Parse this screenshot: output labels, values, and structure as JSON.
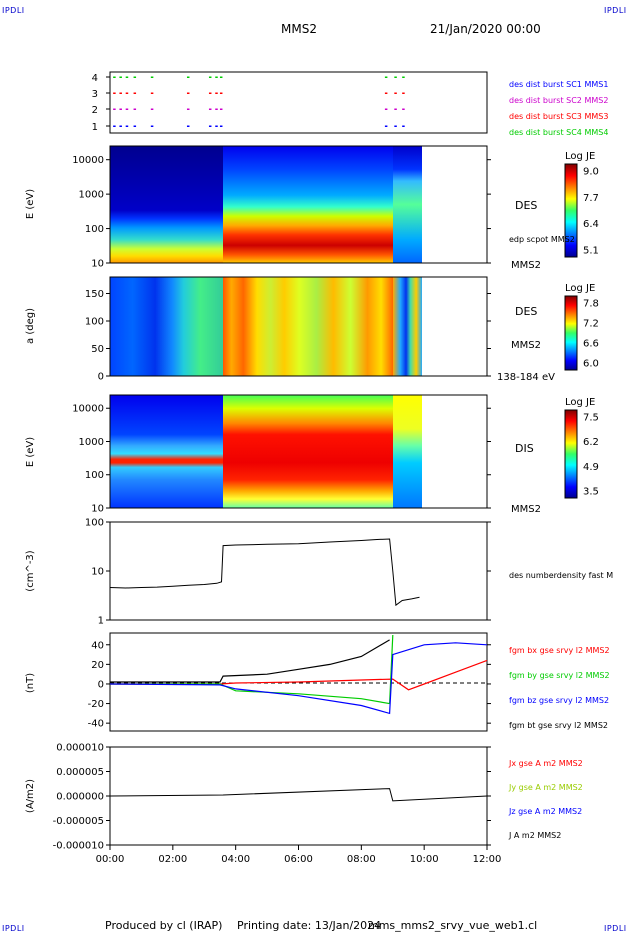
{
  "header": {
    "corner_tl": "IPDLI",
    "corner_tr": "IPDLI",
    "corner_bl": "IPDLI",
    "corner_br": "IPDLI",
    "spacecraft": "MMS2",
    "date": "21/Jan/2020 00:00"
  },
  "footer": {
    "produced": "Produced by cl (IRAP)",
    "printing": "Printing date: 13/Jan/2024",
    "file": "mms_mms2_srvy_vue_web1.cl"
  },
  "colors": {
    "c1": "#0000ff",
    "c2": "#cc00cc",
    "c3": "#ff0000",
    "c4": "#00cc00",
    "black": "#000000"
  },
  "chart_data": [
    {
      "type": "scatter",
      "panel": "burst availability",
      "yticks": [
        "4",
        "3",
        "2",
        "1"
      ],
      "series": [
        {
          "name": "des dist burst SC1 MMS1",
          "color": "#0000ff"
        },
        {
          "name": "des dist burst SC2 MMS2",
          "color": "#cc00cc"
        },
        {
          "name": "des dist burst SC3 MMS3",
          "color": "#ff0000"
        },
        {
          "name": "des dist burst SC4 MMS4",
          "color": "#00cc00"
        }
      ],
      "burst_times_h": [
        0.1,
        0.3,
        0.5,
        0.75,
        1.3,
        2.45,
        3.15,
        3.35,
        3.5,
        8.75,
        9.05,
        9.3
      ]
    },
    {
      "type": "heatmap",
      "panel": "DES electron energy spectrogram",
      "ylabel": "E (eV)",
      "yticks": [
        "10000",
        "1000",
        "100",
        "10"
      ],
      "ylog": [
        10,
        25000
      ],
      "label": "DES",
      "overlay": "edp scpot MMS2",
      "sc": "MMS2",
      "colorbar": {
        "title": "Log JE",
        "ticks": [
          "9.0",
          "7.7",
          "6.4",
          "5.1"
        ],
        "min": 5.1,
        "max": 9.0
      }
    },
    {
      "type": "heatmap",
      "panel": "DES pitch angle",
      "ylabel": "a (deg)",
      "yticks": [
        "150",
        "100",
        "50",
        "0"
      ],
      "ylim": [
        0,
        180
      ],
      "label": "DES",
      "sc": "MMS2",
      "energy": "138-184 eV",
      "colorbar": {
        "title": "Log JE",
        "ticks": [
          "7.8",
          "7.2",
          "6.6",
          "6.0"
        ],
        "min": 6.0,
        "max": 7.8
      }
    },
    {
      "type": "heatmap",
      "panel": "DIS ion energy spectrogram",
      "ylabel": "E (eV)",
      "yticks": [
        "10000",
        "1000",
        "100",
        "10"
      ],
      "ylog": [
        10,
        25000
      ],
      "label": "DIS",
      "sc": "MMS2",
      "colorbar": {
        "title": "Log JE",
        "ticks": [
          "7.5",
          "6.2",
          "4.9",
          "3.5"
        ],
        "min": 3.5,
        "max": 7.5
      }
    },
    {
      "type": "line",
      "panel": "electron density",
      "ylabel": "(cm^-3)",
      "yticks": [
        "100",
        "10",
        "1"
      ],
      "ylog": [
        1,
        100
      ],
      "series": [
        {
          "name": "des numberdensity fast M",
          "color": "#000000"
        }
      ],
      "points_h": [
        [
          0.0,
          4.6
        ],
        [
          0.5,
          4.5
        ],
        [
          1.0,
          4.6
        ],
        [
          1.5,
          4.7
        ],
        [
          2.0,
          4.9
        ],
        [
          2.5,
          5.1
        ],
        [
          3.0,
          5.3
        ],
        [
          3.4,
          5.6
        ],
        [
          3.55,
          6.0
        ],
        [
          3.6,
          33
        ],
        [
          4.0,
          34
        ],
        [
          5.0,
          35
        ],
        [
          6.0,
          36
        ],
        [
          7.0,
          39
        ],
        [
          8.0,
          42
        ],
        [
          8.5,
          44
        ],
        [
          8.9,
          45
        ],
        [
          9.0,
          10
        ],
        [
          9.1,
          2.0
        ],
        [
          9.3,
          2.5
        ],
        [
          9.6,
          2.7
        ],
        [
          9.85,
          2.9
        ]
      ]
    },
    {
      "type": "line",
      "panel": "magnetic field",
      "ylabel": "(nT)",
      "yticks": [
        "40",
        "20",
        "0",
        "-20",
        "-40"
      ],
      "ylim": [
        -48,
        52
      ],
      "series": [
        {
          "name": "fgm bx gse srvy l2 MMS2",
          "color": "#ff0000",
          "points_h": [
            [
              0,
              0
            ],
            [
              3.5,
              0
            ],
            [
              4,
              1
            ],
            [
              6,
              2
            ],
            [
              8,
              4
            ],
            [
              9,
              5
            ],
            [
              9.5,
              -6
            ],
            [
              10,
              0
            ],
            [
              11,
              12
            ],
            [
              12,
              24
            ]
          ]
        },
        {
          "name": "fgm by gse srvy l2 MMS2",
          "color": "#00cc00",
          "points_h": [
            [
              0,
              0
            ],
            [
              3.5,
              0
            ],
            [
              4,
              -7
            ],
            [
              6,
              -10
            ],
            [
              8,
              -15
            ],
            [
              8.9,
              -20
            ],
            [
              9.0,
              50
            ]
          ]
        },
        {
          "name": "fgm bz gse srvy l2 MMS2",
          "color": "#0000ff",
          "points_h": [
            [
              0,
              0
            ],
            [
              3.5,
              -1
            ],
            [
              4,
              -5
            ],
            [
              6,
              -12
            ],
            [
              8,
              -22
            ],
            [
              8.9,
              -30
            ],
            [
              9.0,
              30
            ],
            [
              10,
              40
            ],
            [
              11,
              42
            ],
            [
              12,
              40
            ]
          ]
        },
        {
          "name": "fgm bt gse srvy l2 MMS2",
          "color": "#000000",
          "points_h": [
            [
              0,
              2
            ],
            [
              3.5,
              2
            ],
            [
              3.6,
              8
            ],
            [
              5,
              10
            ],
            [
              6,
              15
            ],
            [
              7,
              20
            ],
            [
              8,
              28
            ],
            [
              8.9,
              45
            ]
          ]
        }
      ]
    },
    {
      "type": "line",
      "panel": "current density",
      "ylabel": "(A/m2)",
      "yticks": [
        "0.000010",
        "0.000005",
        "0.000000",
        "-0.000005",
        "-0.000010"
      ],
      "ylim": [
        -1e-05,
        1e-05
      ],
      "series": [
        {
          "name": "Jx gse A m2 MMS2",
          "color": "#ff0000"
        },
        {
          "name": "Jy gse A m2 MMS2",
          "color": "#99cc00"
        },
        {
          "name": "Jz gse A m2 MMS2",
          "color": "#0000ff"
        },
        {
          "name": "J A m2 MMS2",
          "color": "#000000"
        }
      ],
      "values_h": [
        [
          0,
          0
        ],
        [
          3.6,
          2e-07
        ],
        [
          8.9,
          1.5e-06
        ],
        [
          9.0,
          -1e-06
        ],
        [
          12,
          0
        ]
      ]
    }
  ],
  "time_axis": {
    "ticks": [
      "00:00",
      "02:00",
      "04:00",
      "06:00",
      "08:00",
      "10:00",
      "12:00"
    ],
    "range_h": [
      0,
      12
    ]
  }
}
